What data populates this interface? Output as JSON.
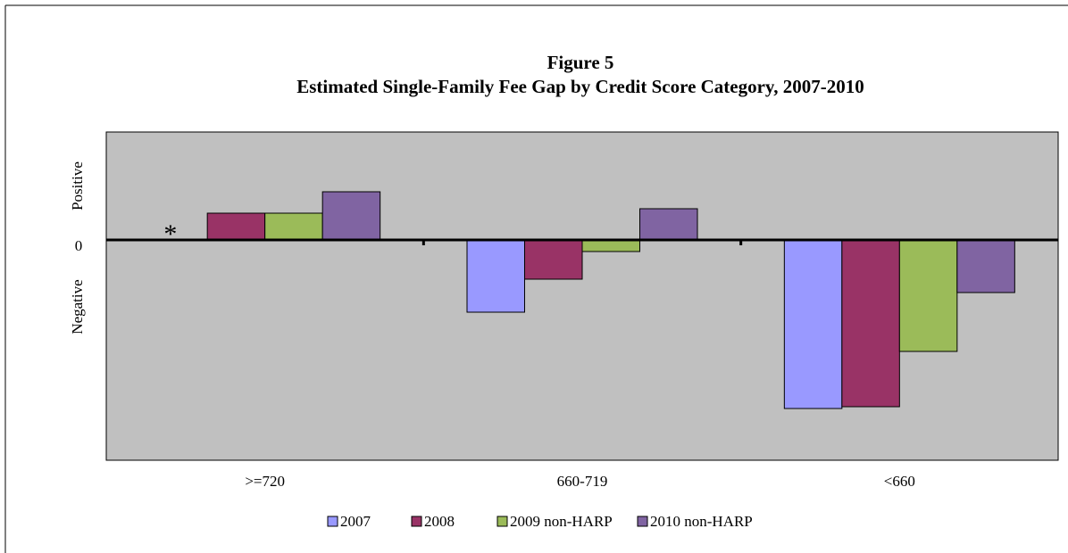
{
  "chart_data": {
    "type": "bar",
    "title": "Figure 5",
    "subtitle": "Estimated Single-Family Fee Gap by Credit Score Category, 2007-2010",
    "categories": [
      ">=720",
      "660-719",
      "<660"
    ],
    "series": [
      {
        "name": "2007",
        "color": "#9999ff",
        "values": [
          null,
          -8.1,
          -18.9
        ]
      },
      {
        "name": "2008",
        "color": "#993366",
        "values": [
          3.0,
          -4.4,
          -18.7
        ]
      },
      {
        "name": "2009 non-HARP",
        "color": "#9bbb59",
        "values": [
          3.0,
          -1.3,
          -12.5
        ]
      },
      {
        "name": "2010 non-HARP",
        "color": "#8064a2",
        "values": [
          5.4,
          3.5,
          -5.9
        ]
      }
    ],
    "annotation": "*",
    "ylim": [
      -24.7,
      12.1
    ],
    "yticks": [
      0
    ],
    "y_axis_labels": [
      "Positive",
      "Negative"
    ],
    "legend": "bottom"
  }
}
